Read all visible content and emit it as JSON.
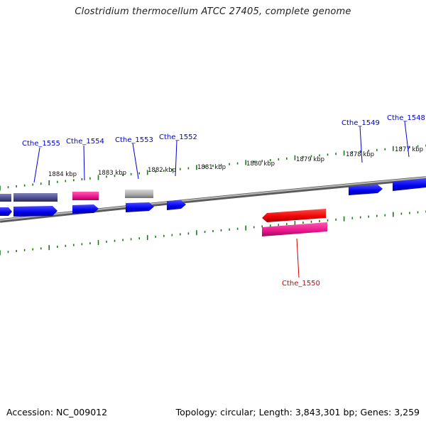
{
  "title": "Clostridium thermocellum ATCC 27405, complete genome",
  "footer": {
    "accession": "Accession: NC_009012",
    "summary": "Topology: circular; Length: 3,843,301 bp; Genes: 3,259"
  },
  "colors": {
    "forward_gene": "#0000ee",
    "reverse_gene": "#ee0000",
    "magenta_feature": "#e8168c",
    "purple_feature": "#4a4a8c",
    "gray_feature": "#a8a8a8",
    "tick": "#1a7a1a",
    "backbone": "#8a8a8a",
    "label_blue": "#0000cc",
    "label_red": "#cc0000"
  },
  "kbp_labels": [
    {
      "text": "1884 kbp"
    },
    {
      "text": "1883 kbp"
    },
    {
      "text": "1882 kbp"
    },
    {
      "text": "1881 kbp"
    },
    {
      "text": "1880 kbp"
    },
    {
      "text": "1879 kbp"
    },
    {
      "text": "1878 kbp"
    },
    {
      "text": "1877 kbp"
    }
  ],
  "gene_labels": [
    {
      "text": "Cthe_1555",
      "color": "blue"
    },
    {
      "text": "Cthe_1554",
      "color": "blue"
    },
    {
      "text": "Cthe_1553",
      "color": "blue"
    },
    {
      "text": "Cthe_1552",
      "color": "blue"
    },
    {
      "text": "Cthe_1549",
      "color": "blue"
    },
    {
      "text": "Cthe_1548",
      "color": "blue"
    },
    {
      "text": "Cthe_1550",
      "color": "red"
    }
  ]
}
